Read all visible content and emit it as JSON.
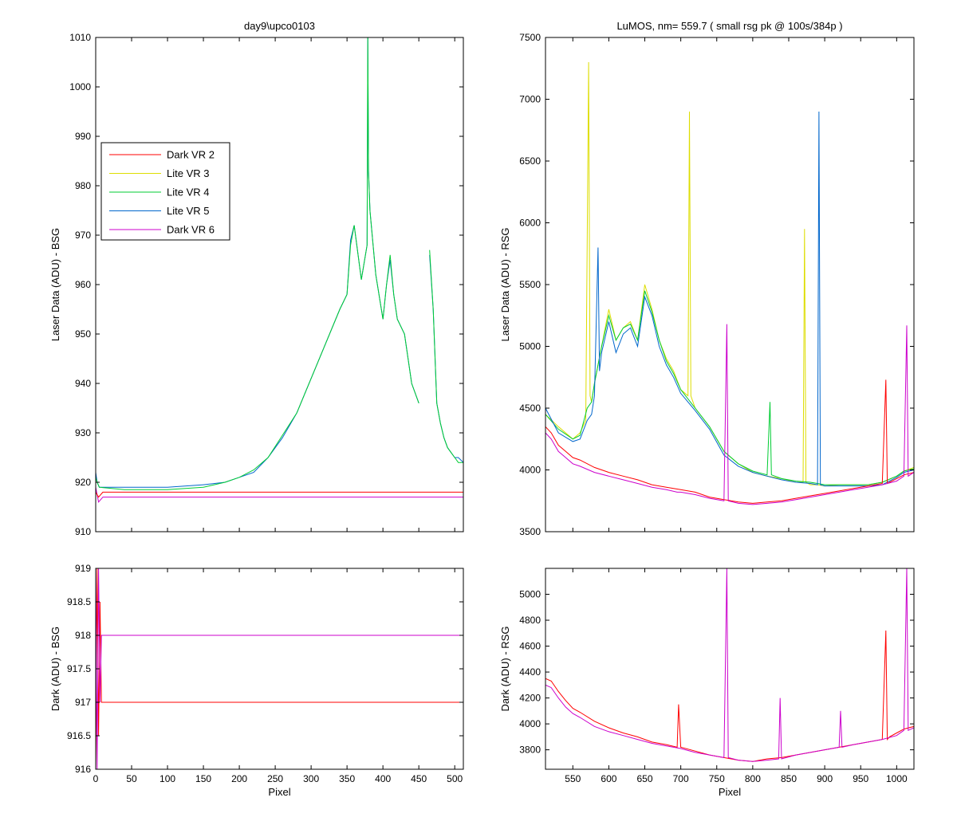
{
  "colors": {
    "Dark VR 2": "#ff0000",
    "Lite VR 3": "#dddd00",
    "Lite VR 4": "#00cc33",
    "Lite VR 5": "#0066cc",
    "Dark VR 6": "#cc00cc"
  },
  "chart_data": [
    {
      "id": "top-left",
      "type": "line",
      "title": "day9\\upco0103",
      "xlabel": "",
      "ylabel": "Laser Data (ADU) - BSG",
      "xlim": [
        0,
        512
      ],
      "ylim": [
        910,
        1010
      ],
      "xticks": [
        0,
        50,
        100,
        150,
        200,
        250,
        300,
        350,
        400,
        450,
        500
      ],
      "xtick_labels_shown": false,
      "yticks": [
        910,
        920,
        930,
        940,
        950,
        960,
        970,
        980,
        990,
        1000,
        1010
      ],
      "legend": {
        "placement": "upper-left",
        "entries": [
          "Dark VR 2",
          "Lite VR 3",
          "Lite VR 4",
          "Lite VR 5",
          "Dark VR 6"
        ]
      },
      "series": [
        {
          "name": "Lite VR 5",
          "x": [
            0,
            2,
            5,
            40,
            100,
            150,
            180,
            200,
            220,
            240,
            260,
            280,
            300,
            320,
            340,
            350,
            355,
            360,
            370,
            378,
            379,
            380,
            382,
            385,
            390,
            400,
            405,
            410,
            415,
            420,
            430,
            440,
            450
          ],
          "y": [
            922,
            920,
            919,
            919,
            919,
            919.5,
            920,
            921,
            922,
            925,
            929,
            934,
            941,
            948,
            955,
            958,
            969,
            972,
            961,
            968,
            1010,
            983,
            975,
            970,
            962,
            953,
            960,
            965,
            958,
            953,
            950,
            940,
            936
          ]
        },
        {
          "name": "Lite VR 5",
          "x": [
            465,
            470,
            475,
            480,
            485,
            490,
            495,
            500,
            505,
            512
          ],
          "y": [
            966,
            955,
            936,
            932,
            929,
            927,
            926,
            925,
            925,
            924
          ]
        },
        {
          "name": "Lite VR 4",
          "x": [
            0,
            2,
            5,
            40,
            100,
            150,
            180,
            200,
            220,
            240,
            260,
            280,
            300,
            320,
            340,
            350,
            355,
            360,
            370,
            378,
            379,
            380,
            382,
            385,
            390,
            400,
            405,
            410,
            415,
            420,
            430,
            440,
            450
          ],
          "y": [
            921,
            920,
            919,
            918.5,
            918.5,
            919,
            920,
            921,
            922.5,
            925,
            929.5,
            934,
            941,
            948,
            955,
            958,
            968,
            972,
            961,
            968,
            1010,
            983,
            975,
            970,
            962,
            953,
            960,
            966,
            958,
            953,
            950,
            940,
            936
          ]
        },
        {
          "name": "Lite VR 4",
          "x": [
            465,
            470,
            475,
            480,
            485,
            490,
            495,
            500,
            505,
            512
          ],
          "y": [
            967,
            955,
            936,
            932,
            929,
            927,
            926,
            925,
            924,
            924
          ]
        },
        {
          "name": "Dark VR 6",
          "x": [
            0,
            4,
            10,
            30,
            60,
            100,
            150,
            200,
            250,
            300,
            350,
            400,
            450,
            512
          ],
          "y": [
            919,
            916,
            917,
            917,
            917,
            917,
            917,
            917,
            917,
            917,
            917,
            917,
            917,
            917
          ]
        },
        {
          "name": "Dark VR 2",
          "x": [
            0,
            4,
            10,
            30,
            60,
            100,
            150,
            200,
            250,
            300,
            350,
            400,
            450,
            512
          ],
          "y": [
            918,
            917,
            918,
            918,
            918,
            918,
            918,
            918,
            918,
            918,
            918,
            918,
            918,
            918
          ]
        }
      ]
    },
    {
      "id": "bottom-left",
      "type": "line",
      "title": "",
      "xlabel": "Pixel",
      "ylabel": "Dark (ADU) - BSG",
      "xlim": [
        0,
        512
      ],
      "ylim": [
        916,
        919
      ],
      "xticks": [
        0,
        50,
        100,
        150,
        200,
        250,
        300,
        350,
        400,
        450,
        500
      ],
      "yticks": [
        916,
        916.5,
        917,
        917.5,
        918,
        918.5,
        919
      ],
      "series": [
        {
          "name": "Dark VR 2",
          "x": [
            0,
            2,
            4,
            6,
            8,
            512
          ],
          "y": [
            916,
            919,
            916.5,
            918.5,
            917,
            917
          ]
        },
        {
          "name": "Dark VR 6",
          "x": [
            0,
            2,
            4,
            6,
            8,
            512
          ],
          "y": [
            919,
            916,
            919,
            917,
            918,
            918
          ]
        }
      ]
    },
    {
      "id": "top-right",
      "type": "line",
      "title": "LuMOS, nm= 559.7 ( small rsg pk @ 100s/384p )",
      "xlabel": "",
      "ylabel": "Laser Data (ADU) - RSG",
      "xlim": [
        512,
        1024
      ],
      "ylim": [
        3500,
        7500
      ],
      "xticks": [
        550,
        600,
        650,
        700,
        750,
        800,
        850,
        900,
        950,
        1000
      ],
      "xtick_labels_shown": false,
      "yticks": [
        3500,
        4000,
        4500,
        5000,
        5500,
        6000,
        6500,
        7000,
        7500
      ],
      "series": [
        {
          "name": "Lite VR 3",
          "x": [
            512,
            530,
            550,
            560,
            568,
            572,
            574,
            576,
            580,
            590,
            600,
            610,
            620,
            630,
            640,
            650,
            660,
            670,
            680,
            690,
            700,
            710,
            712,
            714,
            720,
            740,
            760,
            780,
            800,
            820,
            840,
            860,
            870,
            872,
            874,
            880,
            890,
            900,
            920,
            940,
            960,
            980,
            1000,
            1010,
            1024
          ],
          "y": [
            4450,
            4350,
            4250,
            4300,
            4400,
            7300,
            4600,
            4550,
            4700,
            5000,
            5300,
            5050,
            5150,
            5200,
            5050,
            5500,
            5300,
            5050,
            4900,
            4800,
            4650,
            4600,
            6900,
            4600,
            4500,
            4350,
            4150,
            4050,
            3980,
            3950,
            3930,
            3900,
            3900,
            5950,
            3900,
            3880,
            3880,
            3870,
            3880,
            3880,
            3880,
            3900,
            3950,
            3990,
            4020
          ]
        },
        {
          "name": "Lite VR 4",
          "x": [
            512,
            530,
            550,
            560,
            570,
            576,
            580,
            590,
            600,
            610,
            620,
            630,
            640,
            650,
            660,
            670,
            680,
            690,
            700,
            720,
            740,
            760,
            780,
            800,
            820,
            824,
            826,
            840,
            860,
            880,
            890,
            900,
            920,
            940,
            960,
            980,
            1000,
            1010,
            1024
          ],
          "y": [
            4450,
            4330,
            4250,
            4280,
            4500,
            4550,
            4700,
            5000,
            5250,
            5050,
            5150,
            5180,
            5050,
            5450,
            5280,
            5050,
            4880,
            4780,
            4650,
            4500,
            4350,
            4150,
            4050,
            3990,
            3960,
            4550,
            3960,
            3930,
            3910,
            3900,
            3890,
            3880,
            3880,
            3880,
            3880,
            3900,
            3950,
            3990,
            4010
          ]
        },
        {
          "name": "Lite VR 5",
          "x": [
            512,
            530,
            550,
            560,
            570,
            576,
            580,
            585,
            587,
            590,
            600,
            610,
            620,
            630,
            640,
            650,
            660,
            670,
            680,
            690,
            700,
            720,
            740,
            760,
            780,
            800,
            820,
            840,
            860,
            880,
            890,
            892,
            894,
            900,
            920,
            940,
            960,
            980,
            1000,
            1010,
            1024
          ],
          "y": [
            4500,
            4300,
            4230,
            4250,
            4400,
            4450,
            4600,
            5800,
            4800,
            4950,
            5200,
            4950,
            5100,
            5150,
            5000,
            5400,
            5250,
            5000,
            4850,
            4750,
            4620,
            4480,
            4330,
            4120,
            4030,
            3980,
            3950,
            3920,
            3900,
            3890,
            3880,
            6900,
            3880,
            3870,
            3870,
            3870,
            3870,
            3880,
            3940,
            3980,
            4000
          ]
        },
        {
          "name": "Dark VR 2",
          "x": [
            512,
            520,
            530,
            540,
            550,
            560,
            580,
            600,
            620,
            640,
            660,
            680,
            700,
            720,
            740,
            760,
            780,
            800,
            820,
            840,
            860,
            880,
            900,
            920,
            940,
            960,
            980,
            985,
            987,
            990,
            1000,
            1010,
            1024
          ],
          "y": [
            4350,
            4300,
            4200,
            4150,
            4100,
            4080,
            4020,
            3980,
            3950,
            3920,
            3880,
            3860,
            3840,
            3820,
            3780,
            3760,
            3740,
            3730,
            3740,
            3750,
            3770,
            3790,
            3810,
            3830,
            3850,
            3870,
            3890,
            4730,
            3890,
            3900,
            3930,
            3960,
            3980
          ]
        },
        {
          "name": "Dark VR 6",
          "x": [
            512,
            520,
            530,
            540,
            550,
            560,
            580,
            600,
            620,
            640,
            660,
            680,
            695,
            700,
            720,
            740,
            760,
            764,
            766,
            780,
            800,
            820,
            840,
            860,
            880,
            900,
            920,
            940,
            960,
            980,
            1000,
            1010,
            1014,
            1016,
            1024
          ],
          "y": [
            4300,
            4250,
            4150,
            4100,
            4050,
            4030,
            3980,
            3950,
            3920,
            3890,
            3860,
            3840,
            3820,
            3820,
            3800,
            3770,
            3750,
            5180,
            3750,
            3730,
            3720,
            3730,
            3740,
            3760,
            3780,
            3800,
            3820,
            3840,
            3860,
            3880,
            3910,
            3950,
            5170,
            3950,
            3980
          ]
        }
      ]
    },
    {
      "id": "bottom-right",
      "type": "line",
      "title": "",
      "xlabel": "Pixel",
      "ylabel": "Dark (ADU) - RSG",
      "xlim": [
        512,
        1024
      ],
      "ylim": [
        3650,
        5200
      ],
      "xticks": [
        550,
        600,
        650,
        700,
        750,
        800,
        850,
        900,
        950,
        1000
      ],
      "yticks": [
        3800,
        4000,
        4200,
        4400,
        4600,
        4800,
        5000
      ],
      "series": [
        {
          "name": "Dark VR 2",
          "x": [
            512,
            520,
            530,
            540,
            550,
            560,
            580,
            600,
            620,
            640,
            660,
            680,
            695,
            697,
            700,
            720,
            740,
            760,
            780,
            800,
            820,
            840,
            860,
            880,
            900,
            920,
            940,
            960,
            980,
            985,
            987,
            990,
            1000,
            1010,
            1024
          ],
          "y": [
            4350,
            4330,
            4250,
            4180,
            4120,
            4090,
            4020,
            3970,
            3930,
            3900,
            3860,
            3840,
            3820,
            4150,
            3820,
            3790,
            3760,
            3740,
            3720,
            3710,
            3730,
            3740,
            3760,
            3780,
            3800,
            3820,
            3840,
            3860,
            3880,
            4720,
            3880,
            3900,
            3930,
            3960,
            3980
          ]
        },
        {
          "name": "Dark VR 6",
          "x": [
            512,
            520,
            530,
            540,
            550,
            560,
            580,
            600,
            620,
            640,
            660,
            680,
            700,
            720,
            740,
            760,
            764,
            766,
            780,
            800,
            820,
            836,
            838,
            840,
            860,
            880,
            900,
            920,
            922,
            924,
            940,
            960,
            980,
            1000,
            1010,
            1014,
            1016,
            1024
          ],
          "y": [
            4300,
            4280,
            4200,
            4130,
            4080,
            4050,
            3980,
            3940,
            3910,
            3880,
            3850,
            3830,
            3810,
            3780,
            3760,
            3740,
            5200,
            3740,
            3720,
            3710,
            3720,
            3730,
            4200,
            3730,
            3760,
            3780,
            3800,
            3820,
            4100,
            3820,
            3840,
            3860,
            3880,
            3910,
            3950,
            5200,
            3950,
            3970
          ]
        }
      ]
    }
  ]
}
